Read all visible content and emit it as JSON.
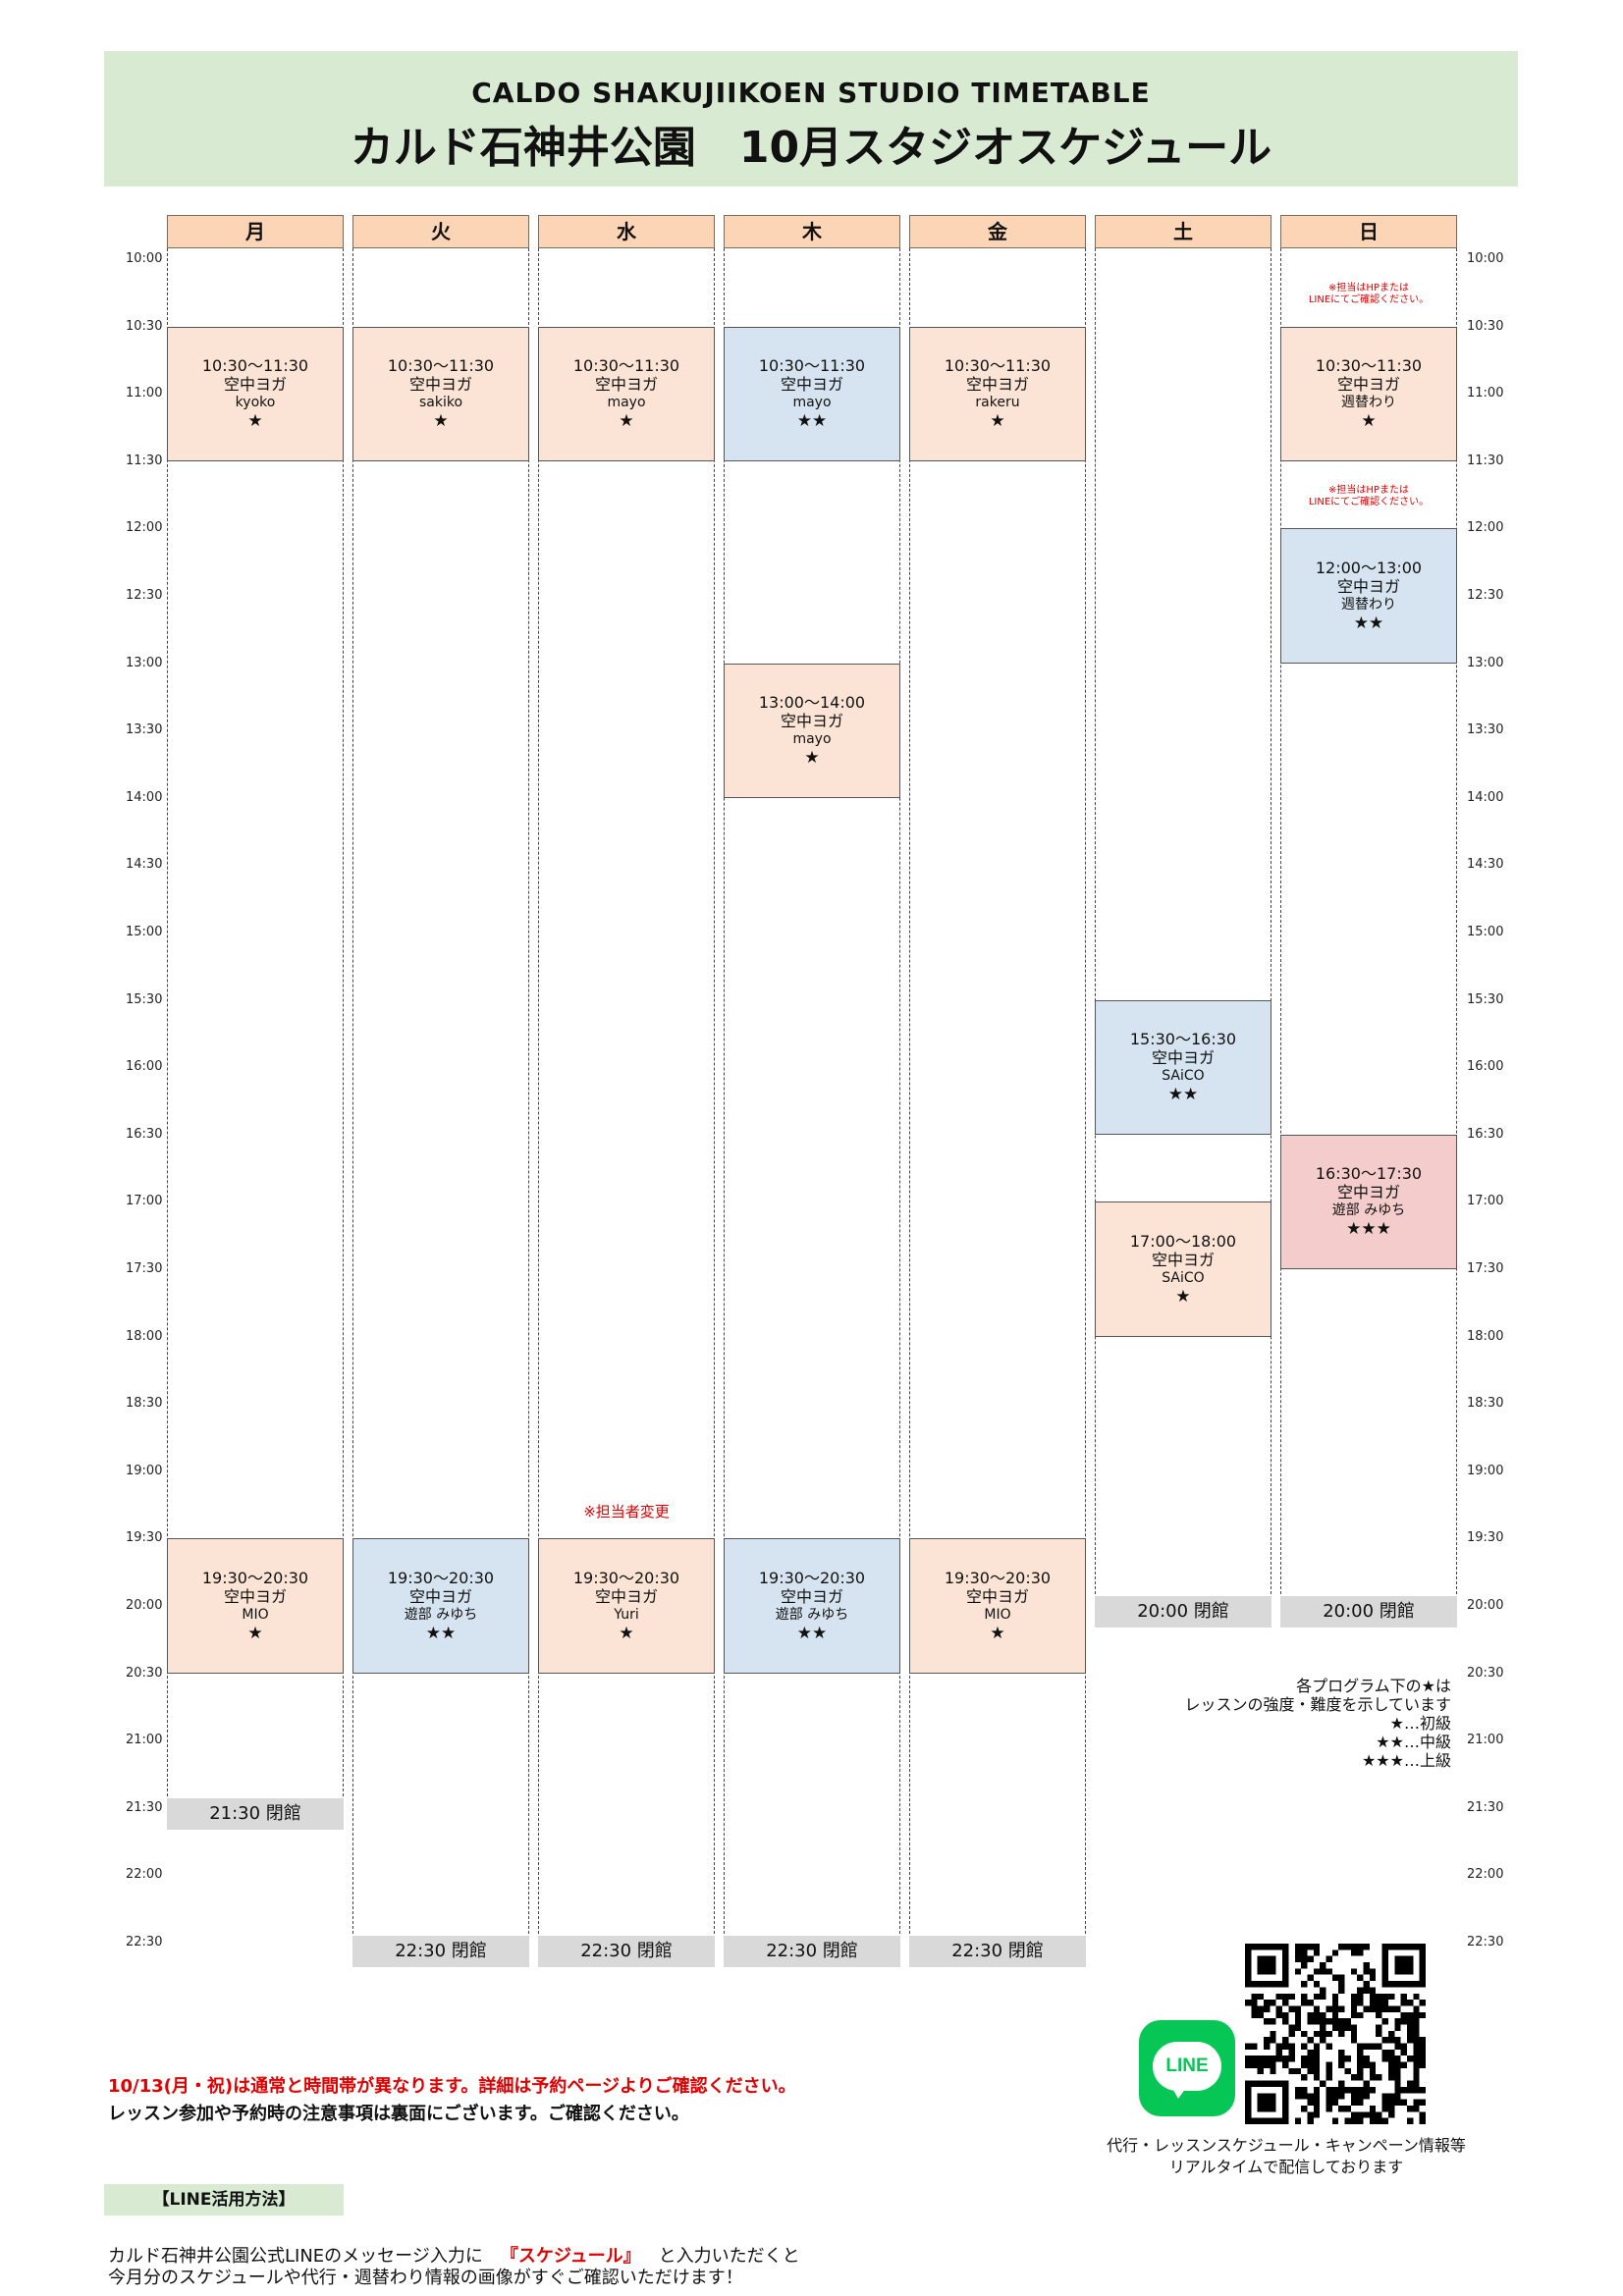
{
  "header": {
    "title_en": "CALDO  SHAKUJIIKOEN  STUDIO  TIMETABLE",
    "title_jp": "カルド石神井公園　10月スタジオスケジュール"
  },
  "days": [
    "月",
    "火",
    "水",
    "木",
    "金",
    "土",
    "日"
  ],
  "times": [
    "10:00",
    "10:30",
    "11:00",
    "11:30",
    "12:00",
    "12:30",
    "13:00",
    "13:30",
    "14:00",
    "14:30",
    "15:00",
    "15:30",
    "16:00",
    "16:30",
    "17:00",
    "17:30",
    "18:00",
    "18:30",
    "19:00",
    "19:30",
    "20:00",
    "20:30",
    "21:00",
    "21:30",
    "22:00",
    "22:30"
  ],
  "lessons": [
    {
      "day": 0,
      "time": "10:30～11:30",
      "name": "空中ヨガ",
      "instructor": "kyoko",
      "stars": "★",
      "color": "orange"
    },
    {
      "day": 1,
      "time": "10:30～11:30",
      "name": "空中ヨガ",
      "instructor": "sakiko",
      "stars": "★",
      "color": "orange"
    },
    {
      "day": 2,
      "time": "10:30～11:30",
      "name": "空中ヨガ",
      "instructor": "mayo",
      "stars": "★",
      "color": "orange"
    },
    {
      "day": 3,
      "time": "10:30～11:30",
      "name": "空中ヨガ",
      "instructor": "mayo",
      "stars": "★★",
      "color": "blue"
    },
    {
      "day": 4,
      "time": "10:30～11:30",
      "name": "空中ヨガ",
      "instructor": "rakeru",
      "stars": "★",
      "color": "orange"
    },
    {
      "day": 6,
      "time": "10:30～11:30",
      "name": "空中ヨガ",
      "instructor": "週替わり",
      "stars": "★",
      "color": "orange"
    },
    {
      "day": 6,
      "time": "12:00～13:00",
      "name": "空中ヨガ",
      "instructor": "週替わり",
      "stars": "★★",
      "color": "blue"
    },
    {
      "day": 3,
      "time": "13:00～14:00",
      "name": "空中ヨガ",
      "instructor": "mayo",
      "stars": "★",
      "color": "orange"
    },
    {
      "day": 5,
      "time": "15:30～16:30",
      "name": "空中ヨガ",
      "instructor": "SAiCO",
      "stars": "★★",
      "color": "blue"
    },
    {
      "day": 6,
      "time": "16:30～17:30",
      "name": "空中ヨガ",
      "instructor": "遊部 みゆち",
      "stars": "★★★",
      "color": "pink"
    },
    {
      "day": 5,
      "time": "17:00～18:00",
      "name": "空中ヨガ",
      "instructor": "SAiCO",
      "stars": "★",
      "color": "orange"
    },
    {
      "day": 0,
      "time": "19:30～20:30",
      "name": "空中ヨガ",
      "instructor": "MIO",
      "stars": "★",
      "color": "orange"
    },
    {
      "day": 1,
      "time": "19:30～20:30",
      "name": "空中ヨガ",
      "instructor": "遊部 みゆち",
      "stars": "★★",
      "color": "blue"
    },
    {
      "day": 2,
      "time": "19:30～20:30",
      "name": "空中ヨガ",
      "instructor": "Yuri",
      "stars": "★",
      "color": "orange"
    },
    {
      "day": 3,
      "time": "19:30～20:30",
      "name": "空中ヨガ",
      "instructor": "遊部 みゆち",
      "stars": "★★",
      "color": "blue"
    },
    {
      "day": 4,
      "time": "19:30～20:30",
      "name": "空中ヨガ",
      "instructor": "MIO",
      "stars": "★",
      "color": "orange"
    }
  ],
  "closing": [
    {
      "day": 0,
      "label": "21:30  閉館"
    },
    {
      "day": 1,
      "label": "22:30  閉館"
    },
    {
      "day": 2,
      "label": "22:30  閉館"
    },
    {
      "day": 3,
      "label": "22:30  閉館"
    },
    {
      "day": 4,
      "label": "22:30  閉館"
    },
    {
      "day": 5,
      "label": "20:00  閉館"
    },
    {
      "day": 6,
      "label": "20:00  閉館"
    }
  ],
  "notes": {
    "sun_note_line1": "※担当はHPまたは",
    "sun_note_line2": "LINEにてご確認ください。",
    "instructor_change": "※担当者変更"
  },
  "legend": [
    "各プログラム下の★は",
    "レッスンの強度・難度を示しています",
    "★…初級",
    "★★…中級",
    "★★★…上級"
  ],
  "notice": {
    "red": "10/13(月・祝)は通常と時間帯が異なります。詳細は予約ページよりご確認ください。",
    "black": "レッスン参加や予約時の注意事項は裏面にございます。ご確認ください。"
  },
  "line": {
    "section_label": "【LINE活用方法】",
    "text_before": "カルド石神井公園公式LINEのメッセージ入力に",
    "keyword": "『スケジュール』",
    "text_after": "と入力いただくと",
    "text_line2": "今月分のスケジュールや代行・週替わり情報の画像がすぐご確認いただけます！",
    "logo_text": "LINE",
    "caption_line1": "代行・レッスンスケジュール・キャンペーン情報等",
    "caption_line2": "リアルタイムで配信しております",
    "brand_color": "#06c755"
  }
}
